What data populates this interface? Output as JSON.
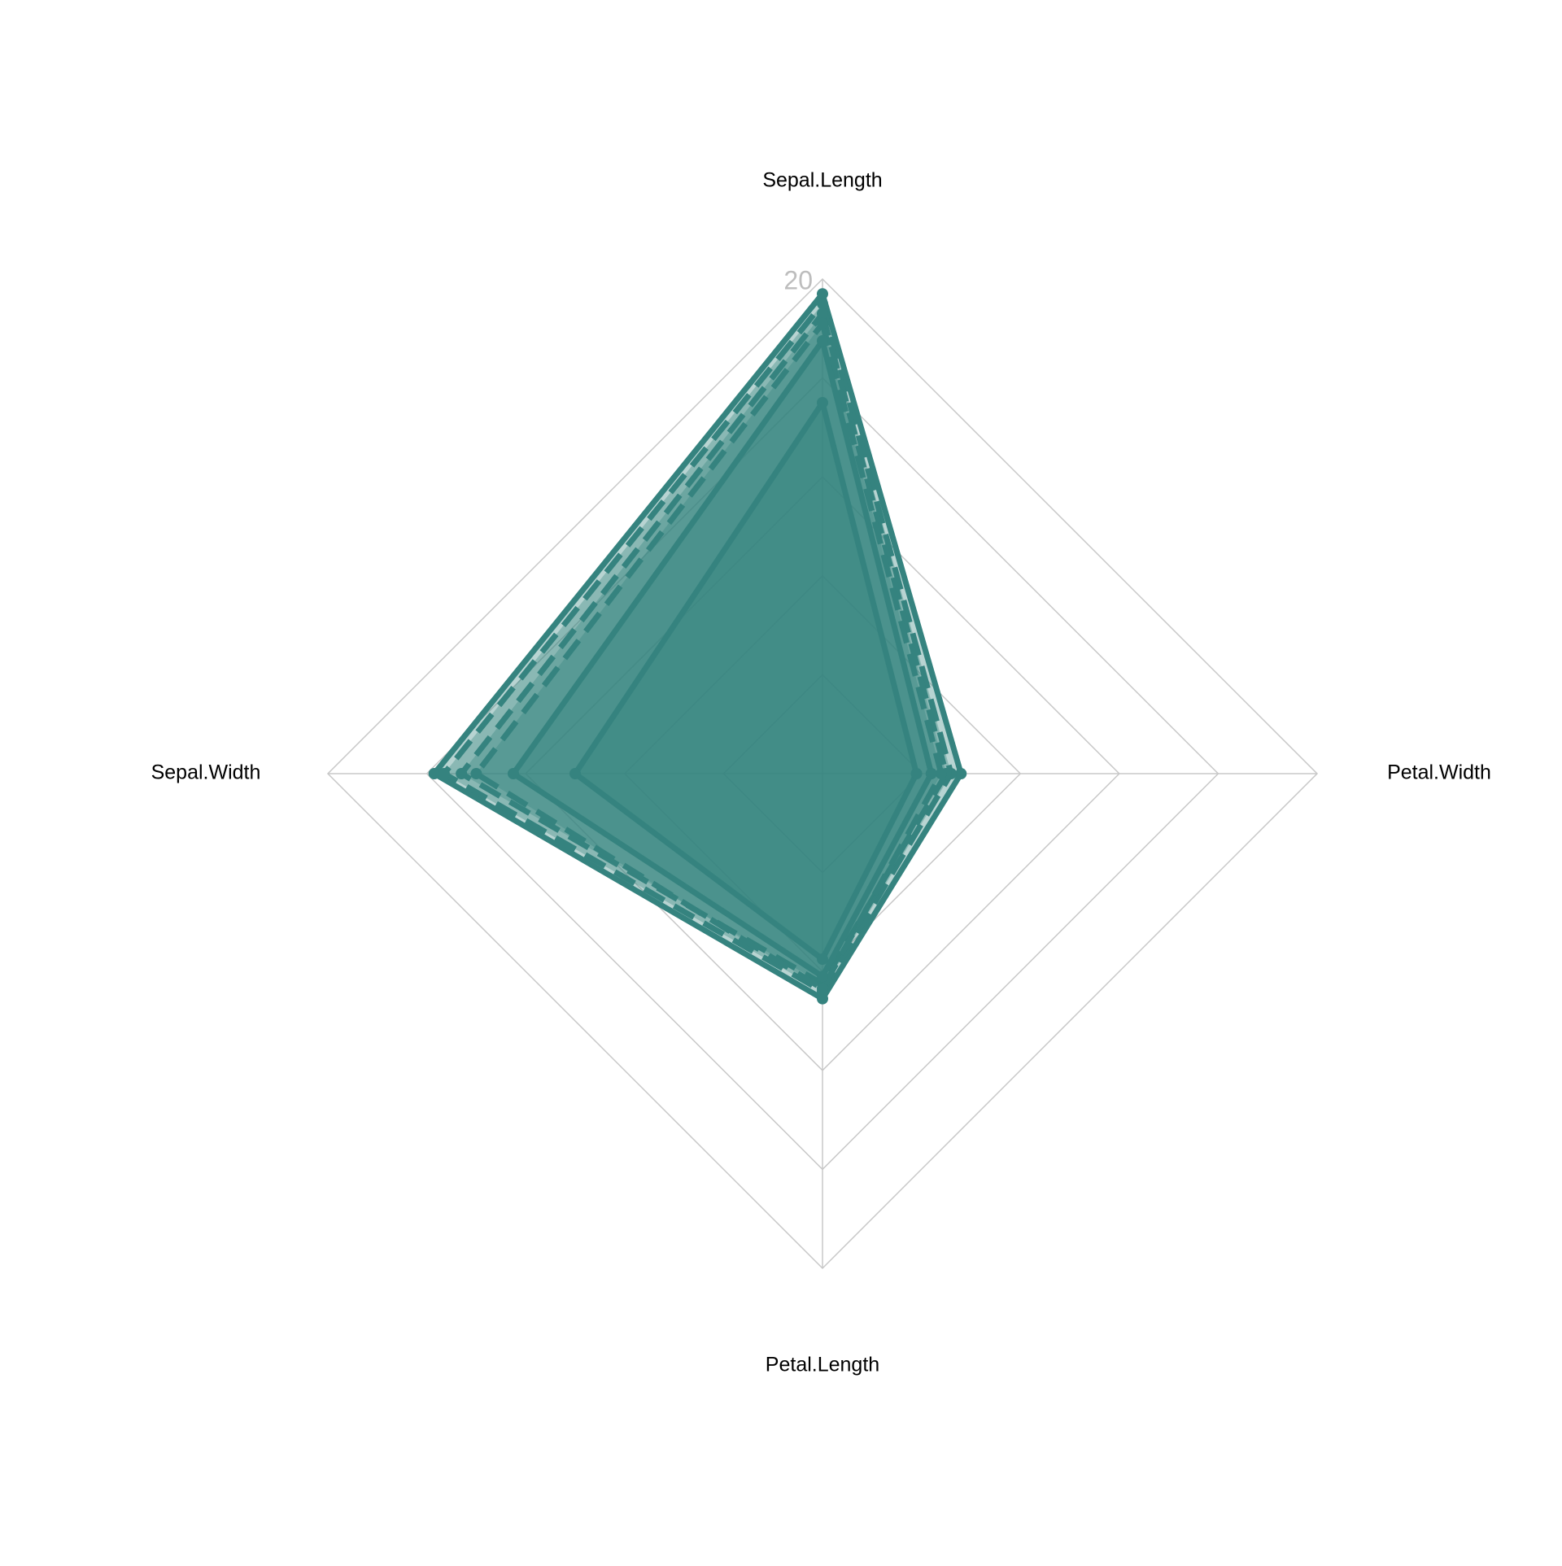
{
  "chart_data": {
    "type": "radar",
    "axes": [
      "Sepal.Length",
      "Petal.Width",
      "Petal.Length",
      "Sepal.Width"
    ],
    "rlim": [
      0,
      20
    ],
    "rticks": [
      4,
      8,
      12,
      16,
      20
    ],
    "grid": true,
    "series": [
      {
        "color": "#35837f",
        "dash": "solid",
        "values": [
          19.4,
          5.6,
          9.1,
          15.7
        ]
      },
      {
        "color": "#35837f",
        "dash": "dashed",
        "values": [
          19.0,
          5.2,
          8.8,
          15.3
        ]
      },
      {
        "color": "#35837f",
        "dash": "dashed",
        "values": [
          18.6,
          5.0,
          8.5,
          14.6
        ]
      },
      {
        "color": "#35837f",
        "dash": "dashed",
        "values": [
          18.2,
          4.8,
          8.7,
          14.0
        ]
      },
      {
        "color": "#35837f",
        "dash": "solid",
        "values": [
          17.5,
          4.4,
          8.2,
          12.5
        ]
      },
      {
        "color": "#35837f",
        "dash": "solid",
        "values": [
          15.0,
          3.8,
          7.5,
          10.0
        ]
      }
    ]
  }
}
